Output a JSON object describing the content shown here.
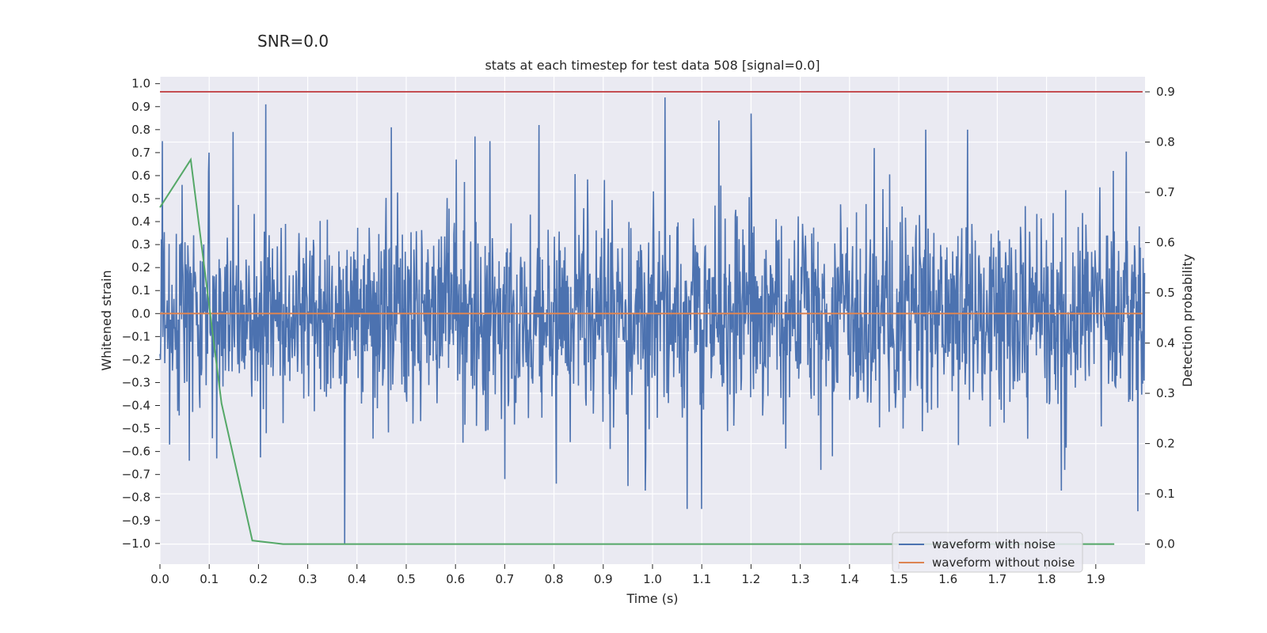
{
  "chart_data": {
    "type": "line",
    "suptitle": "SNR=0.0",
    "title": "stats at each timestep for test data 508 [signal=0.0]",
    "xlabel": "Time (s)",
    "ylabel": "Whitened strain",
    "y2label": "Detection probability",
    "xlim": [
      0.0,
      2.0
    ],
    "ylim": [
      -1.09,
      1.03
    ],
    "y2lim": [
      -0.04,
      0.93
    ],
    "xticks": [
      0.0,
      0.1,
      0.2,
      0.3,
      0.4,
      0.5,
      0.6,
      0.7,
      0.8,
      0.9,
      1.0,
      1.1,
      1.2,
      1.3,
      1.4,
      1.5,
      1.6,
      1.7,
      1.8,
      1.9
    ],
    "xtick_labels": [
      "0.0",
      "0.1",
      "0.2",
      "0.3",
      "0.4",
      "0.5",
      "0.6",
      "0.7",
      "0.8",
      "0.9",
      "1.0",
      "1.1",
      "1.2",
      "1.3",
      "1.4",
      "1.5",
      "1.6",
      "1.7",
      "1.8",
      "1.9"
    ],
    "yticks": [
      1.0,
      0.9,
      0.8,
      0.7,
      0.6,
      0.5,
      0.4,
      0.3,
      0.2,
      0.1,
      0.0,
      -0.1,
      -0.2,
      -0.3,
      -0.4,
      -0.5,
      -0.6,
      -0.7,
      -0.8,
      -0.9,
      -1.0
    ],
    "ytick_labels": [
      "1.0",
      "0.9",
      "0.8",
      "0.7",
      "0.6",
      "0.5",
      "0.4",
      "0.3",
      "0.2",
      "0.1",
      "0.0",
      "−0.1",
      "−0.2",
      "−0.3",
      "−0.4",
      "−0.5",
      "−0.6",
      "−0.7",
      "−0.8",
      "−0.9",
      "−1.0"
    ],
    "y2ticks": [
      0.9,
      0.8,
      0.7,
      0.6,
      0.5,
      0.4,
      0.3,
      0.2,
      0.1,
      0.0
    ],
    "y2tick_labels": [
      "0.9",
      "0.8",
      "0.7",
      "0.6",
      "0.5",
      "0.4",
      "0.3",
      "0.2",
      "0.1",
      "0.0"
    ],
    "legend": {
      "placement": "lower-right",
      "entries": [
        "waveform with noise",
        "waveform without noise"
      ]
    },
    "colors": {
      "noise": "#4c72b0",
      "clean": "#dd8452",
      "probability": "#55a868",
      "threshold": "#c44e52",
      "plot_bg": "#eaeaf2",
      "grid": "#ffffff"
    },
    "series": [
      {
        "name": "waveform with noise",
        "axis": "left",
        "description": "noisy whitened strain, approx. 2048 samples over 0.0-2.0 s, amplitude mostly within [-0.6, 0.8], generated deterministically",
        "n_samples": 2048,
        "noise_std": 0.22,
        "noise_seed": 508,
        "spikes": [
          {
            "x": 0.005,
            "y": 0.75
          },
          {
            "x": 0.02,
            "y": -0.57
          },
          {
            "x": 0.045,
            "y": 0.56
          },
          {
            "x": 0.06,
            "y": -0.64
          },
          {
            "x": 0.1,
            "y": 0.7
          },
          {
            "x": 0.115,
            "y": -0.63
          },
          {
            "x": 0.148,
            "y": 0.79
          },
          {
            "x": 0.215,
            "y": 0.91
          },
          {
            "x": 0.375,
            "y": -1.0
          },
          {
            "x": 0.47,
            "y": 0.81
          },
          {
            "x": 0.64,
            "y": 0.77
          },
          {
            "x": 0.67,
            "y": 0.75
          },
          {
            "x": 0.7,
            "y": -0.72
          },
          {
            "x": 0.77,
            "y": 0.82
          },
          {
            "x": 0.805,
            "y": -0.74
          },
          {
            "x": 0.95,
            "y": -0.75
          },
          {
            "x": 0.985,
            "y": -0.77
          },
          {
            "x": 1.025,
            "y": 0.94
          },
          {
            "x": 1.07,
            "y": -0.85
          },
          {
            "x": 1.1,
            "y": -0.85
          },
          {
            "x": 1.135,
            "y": 0.84
          },
          {
            "x": 1.2,
            "y": 0.87
          },
          {
            "x": 1.45,
            "y": 0.72
          },
          {
            "x": 1.555,
            "y": 0.8
          },
          {
            "x": 1.64,
            "y": 0.8
          },
          {
            "x": 1.83,
            "y": -0.77
          },
          {
            "x": 1.985,
            "y": -0.86
          }
        ]
      },
      {
        "name": "waveform without noise",
        "axis": "left",
        "x": [
          0.0,
          1.995
        ],
        "y": [
          0.0,
          0.0
        ]
      },
      {
        "name": "detection probability",
        "axis": "right",
        "x": [
          0.0,
          0.0625,
          0.125,
          0.1875,
          0.25,
          0.3125,
          0.375,
          0.5,
          1.0,
          1.5,
          1.9375
        ],
        "y": [
          0.67,
          0.765,
          0.28,
          0.007,
          0.0,
          0.0,
          0.0,
          0.0,
          0.0,
          0.0,
          0.0
        ]
      },
      {
        "name": "threshold",
        "axis": "right",
        "x": [
          0.0,
          1.995
        ],
        "y": [
          0.9,
          0.9
        ]
      }
    ]
  }
}
